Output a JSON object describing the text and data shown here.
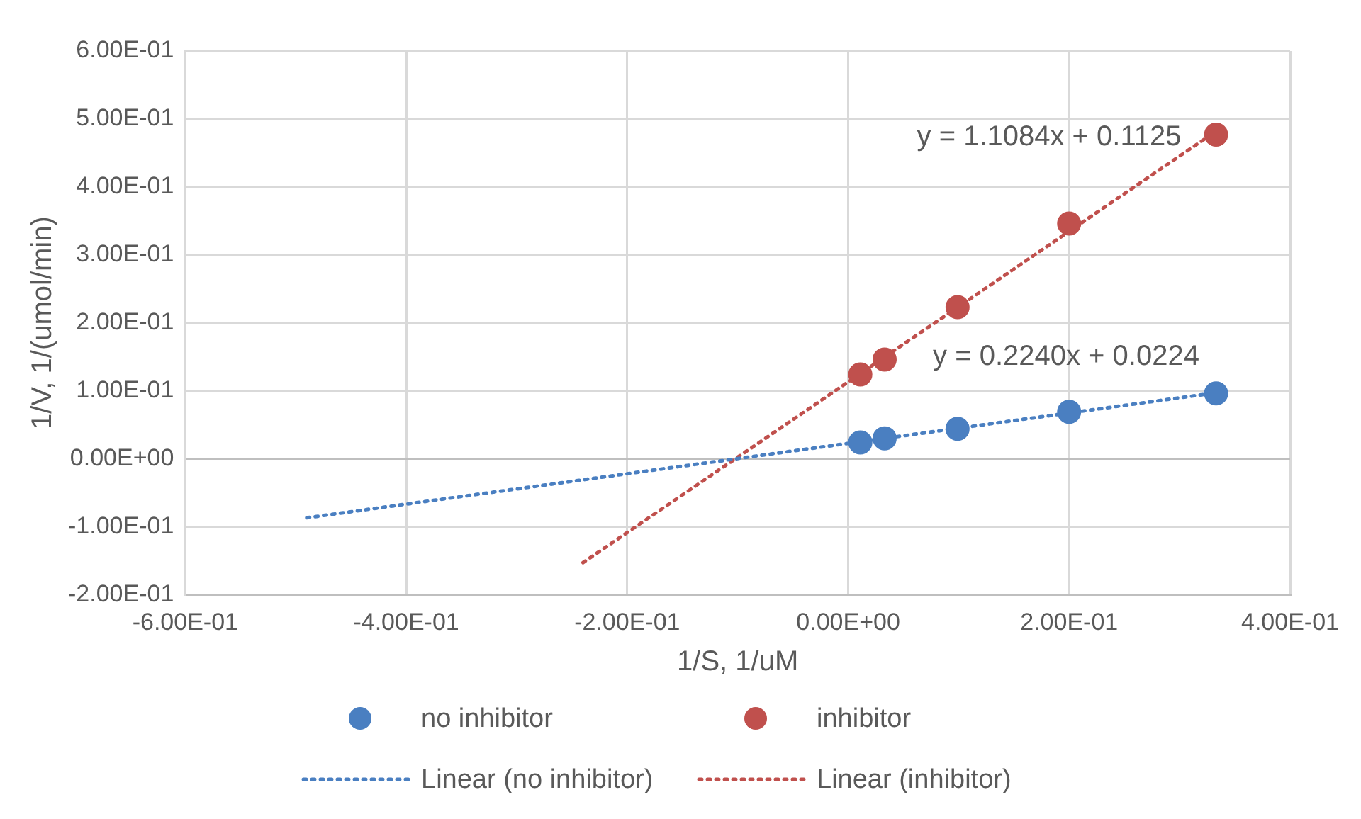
{
  "chart_data": {
    "type": "scatter",
    "xlabel": "1/S, 1/uM",
    "ylabel": "1/V, 1/(umol/min)",
    "xlim": [
      -0.6,
      0.4
    ],
    "xticks": [
      {
        "value": -0.6,
        "label": "-6.00E-01"
      },
      {
        "value": -0.4,
        "label": "-4.00E-01"
      },
      {
        "value": -0.2,
        "label": "-2.00E-01"
      },
      {
        "value": 0,
        "label": "0.00E+00"
      },
      {
        "value": 0.2,
        "label": "2.00E-01"
      },
      {
        "value": 0.4,
        "label": "4.00E-01"
      }
    ],
    "ylim": [
      -0.2,
      0.6
    ],
    "yticks": [
      {
        "value": -0.2,
        "label": "-2.00E-01"
      },
      {
        "value": -0.1,
        "label": "-1.00E-01"
      },
      {
        "value": 0,
        "label": "0.00E+00"
      },
      {
        "value": 0.1,
        "label": "1.00E-01"
      },
      {
        "value": 0.2,
        "label": "2.00E-01"
      },
      {
        "value": 0.3,
        "label": "3.00E-01"
      },
      {
        "value": 0.4,
        "label": "4.00E-01"
      },
      {
        "value": 0.5,
        "label": "5.00E-01"
      },
      {
        "value": 0.6,
        "label": "6.00E-01"
      }
    ],
    "grid": true,
    "legend": "bottom",
    "marker": "circle",
    "series": [
      {
        "name": "no inhibitor",
        "color": "#4a7fc1",
        "x": [
          0.011,
          0.033,
          0.099,
          0.2,
          0.333
        ],
        "values": [
          0.024,
          0.03,
          0.044,
          0.069,
          0.096
        ]
      },
      {
        "name": "inhibitor",
        "color": "#c0504d",
        "x": [
          0.011,
          0.033,
          0.099,
          0.2,
          0.333
        ],
        "values": [
          0.124,
          0.146,
          0.223,
          0.346,
          0.477
        ]
      },
      {
        "name": "Linear (no inhibitor)",
        "type": "line",
        "line_style": "dotted",
        "marker": "none",
        "color": "#4a7fc1",
        "x": [
          -0.49,
          0.333
        ],
        "values": [
          -0.087,
          0.097
        ]
      },
      {
        "name": "Linear (inhibitor)",
        "type": "line",
        "line_style": "dotted",
        "marker": "none",
        "color": "#c0504d",
        "x": [
          -0.24,
          0.333
        ],
        "values": [
          -0.153,
          0.482
        ]
      }
    ],
    "annotations": [
      "y = 1.1084x + 0.1125",
      "y = 0.2240x + 0.0224"
    ]
  }
}
